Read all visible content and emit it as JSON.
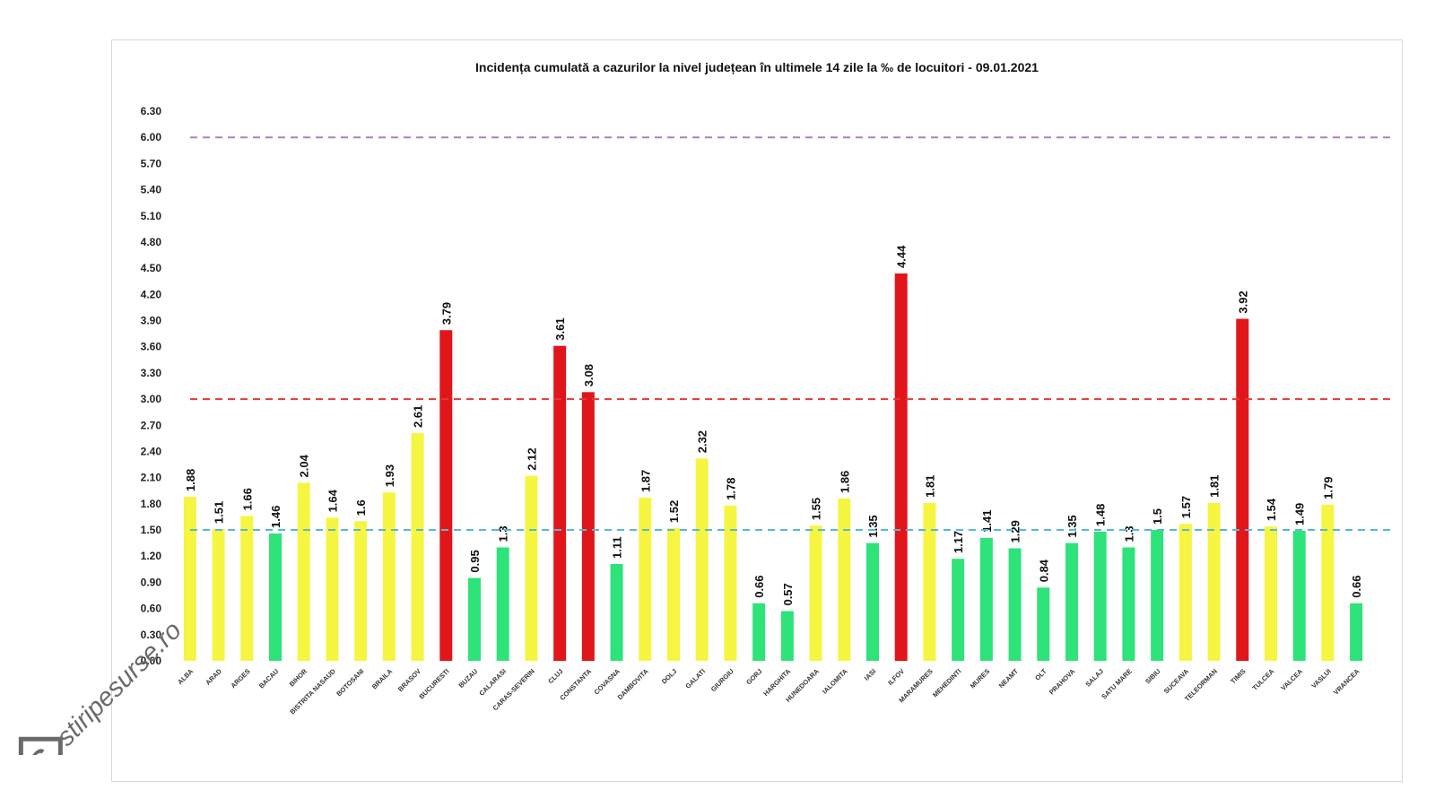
{
  "chart_data": {
    "type": "bar",
    "title": "Incidența cumulată a cazurilor la nivel județean în ultimele 14 zile la ‰ de locuitori - 09.01.2021",
    "xlabel": "",
    "ylabel": "",
    "ylim": [
      0,
      6.3
    ],
    "yticks": [
      "0.00",
      "0.30",
      "0.60",
      "0.90",
      "1.20",
      "1.50",
      "1.80",
      "2.10",
      "2.40",
      "2.70",
      "3.00",
      "3.30",
      "3.60",
      "3.90",
      "4.20",
      "4.50",
      "4.80",
      "5.10",
      "5.40",
      "5.70",
      "6.00",
      "6.30"
    ],
    "categories": [
      "ALBA",
      "ARAD",
      "ARGES",
      "BACAU",
      "BIHOR",
      "BISTRITA NASAUD",
      "BOTOSANI",
      "BRAILA",
      "BRASOV",
      "BUCURESTI",
      "BUZAU",
      "CALARASI",
      "CARAS-SEVERIN",
      "CLUJ",
      "CONSTANTA",
      "COVASNA",
      "DAMBOVITA",
      "DOLJ",
      "GALATI",
      "GIURGIU",
      "GORJ",
      "HARGHITA",
      "HUNEDOARA",
      "IALOMITA",
      "IASI",
      "ILFOV",
      "MARAMURES",
      "MEHEDINTI",
      "MURES",
      "NEAMT",
      "OLT",
      "PRAHOVA",
      "SALAJ",
      "SATU MARE",
      "SIBIU",
      "SUCEAVA",
      "TELEORMAN",
      "TIMIS",
      "TULCEA",
      "VALCEA",
      "VASLUI",
      "VRANCEA"
    ],
    "values": [
      1.88,
      1.51,
      1.66,
      1.46,
      2.04,
      1.64,
      1.6,
      1.93,
      2.61,
      3.79,
      0.95,
      1.3,
      2.12,
      3.61,
      3.08,
      1.11,
      1.87,
      1.52,
      2.32,
      1.78,
      0.66,
      0.57,
      1.55,
      1.86,
      1.35,
      4.44,
      1.81,
      1.17,
      1.41,
      1.29,
      0.84,
      1.35,
      1.48,
      1.3,
      1.5,
      1.57,
      1.81,
      3.92,
      1.54,
      1.49,
      1.79,
      0.66
    ],
    "value_labels": [
      "1.88",
      "1.51",
      "1.66",
      "1.46",
      "2.04",
      "1.64",
      "1.6",
      "1.93",
      "2.61",
      "3.79",
      "0.95",
      "1.3",
      "2.12",
      "3.61",
      "3.08",
      "1.11",
      "1.87",
      "1.52",
      "2.32",
      "1.78",
      "0.66",
      "0.57",
      "1.55",
      "1.86",
      "1.35",
      "4.44",
      "1.81",
      "1.17",
      "1.41",
      "1.29",
      "0.84",
      "1.35",
      "1.48",
      "1.3",
      "1.5",
      "1.57",
      "1.81",
      "3.92",
      "1.54",
      "1.49",
      "1.79",
      "0.66"
    ],
    "thresholds": [
      {
        "value": 6.0,
        "color": "#b07fc0",
        "style": "dashed"
      },
      {
        "value": 3.0,
        "color": "#e53935",
        "style": "dashed"
      },
      {
        "value": 1.5,
        "color": "#5ab8d0",
        "style": "dashed"
      }
    ],
    "colors": {
      "green": "#2ee37a",
      "yellow": "#f5f542",
      "red": "#e0161b"
    },
    "grid": false
  },
  "watermark": {
    "text": "stiripesurse.ro",
    "logo_letter": "S"
  }
}
